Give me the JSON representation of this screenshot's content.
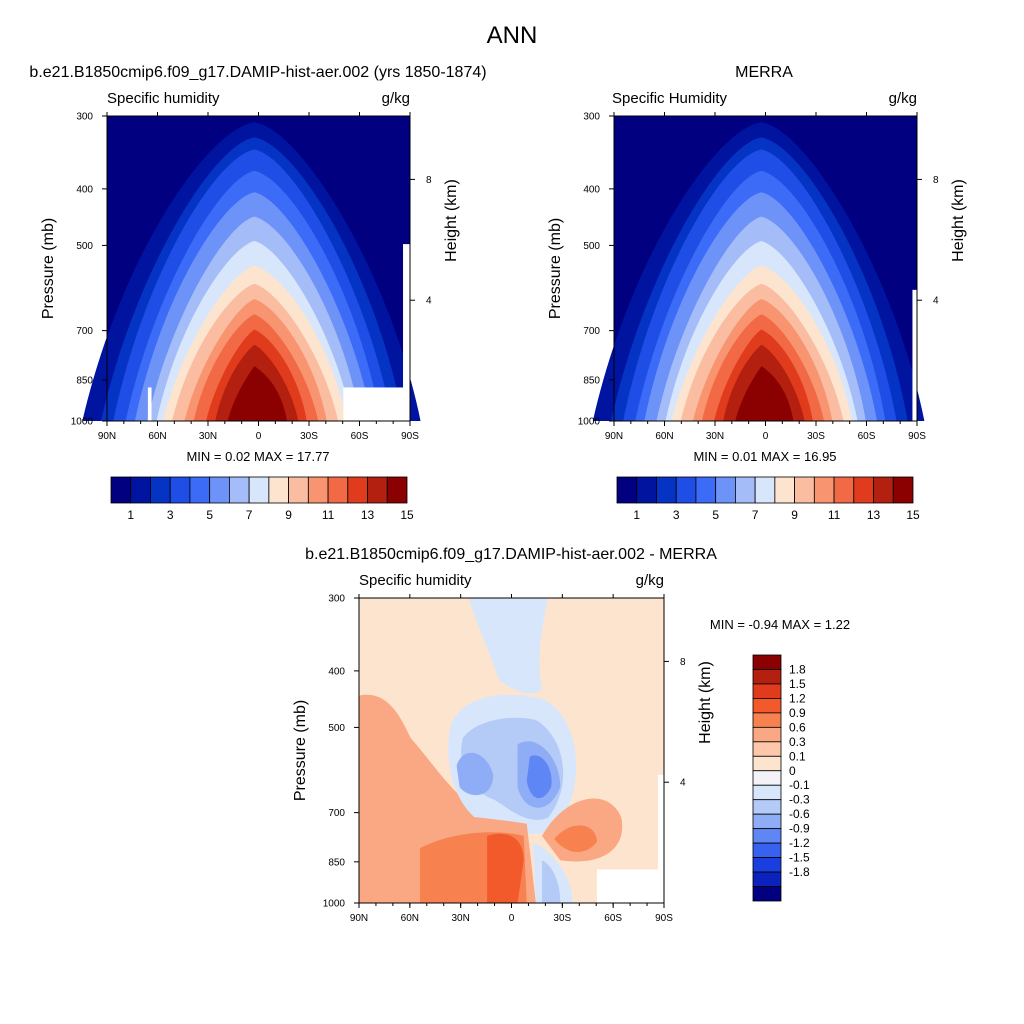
{
  "figure_title": "ANN",
  "chart_data": [
    {
      "type": "heatmap",
      "panel_title": "b.e21.B1850cmip6.f09_g17.DAMIP-hist-aer.002 (yrs 1850-1874)",
      "left_label": "Specific humidity",
      "right_label": "g/kg",
      "ylabel": "Pressure (mb)",
      "y2label": "Height (km)",
      "xticks": [
        "90N",
        "60N",
        "30N",
        "0",
        "30S",
        "60S",
        "90S"
      ],
      "yticks": [
        "300",
        "400",
        "500",
        "700",
        "850",
        "1000"
      ],
      "y2ticks": [
        "8",
        "4"
      ],
      "stats": "MIN =   0.02  MAX =  17.77",
      "min": 0.02,
      "max": 17.77,
      "levels": [
        1,
        2,
        3,
        4,
        5,
        6,
        7,
        8,
        9,
        10,
        11,
        12,
        13,
        14,
        15
      ],
      "colorbar_labels": [
        "1",
        "3",
        "5",
        "7",
        "9",
        "11",
        "13",
        "15"
      ],
      "colorbar_orientation": "horizontal",
      "colors": [
        "#000080",
        "#0014a0",
        "#0533c4",
        "#1e4ee6",
        "#3c6cf7",
        "#6e93f8",
        "#a4bdf8",
        "#d8e6fb",
        "#fde4cf",
        "#fbbda1",
        "#f8946f",
        "#f26945",
        "#e13b1d",
        "#b3200f",
        "#8b0000"
      ]
    },
    {
      "type": "heatmap",
      "panel_title": "MERRA",
      "left_label": "Specific Humidity",
      "right_label": "g/kg",
      "ylabel": "Pressure (mb)",
      "y2label": "Height (km)",
      "xticks": [
        "90N",
        "60N",
        "30N",
        "0",
        "30S",
        "60S",
        "90S"
      ],
      "yticks": [
        "300",
        "400",
        "500",
        "700",
        "850",
        "1000"
      ],
      "y2ticks": [
        "8",
        "4"
      ],
      "stats": "MIN =   0.01  MAX =  16.95",
      "min": 0.01,
      "max": 16.95,
      "levels": [
        1,
        2,
        3,
        4,
        5,
        6,
        7,
        8,
        9,
        10,
        11,
        12,
        13,
        14,
        15
      ],
      "colorbar_labels": [
        "1",
        "3",
        "5",
        "7",
        "9",
        "11",
        "13",
        "15"
      ],
      "colorbar_orientation": "horizontal"
    },
    {
      "type": "heatmap",
      "panel_title": "b.e21.B1850cmip6.f09_g17.DAMIP-hist-aer.002 - MERRA",
      "left_label": "Specific humidity",
      "right_label": "g/kg",
      "ylabel": "Pressure (mb)",
      "y2label": "Height (km)",
      "xticks": [
        "90N",
        "60N",
        "30N",
        "0",
        "30S",
        "60S",
        "90S"
      ],
      "yticks": [
        "300",
        "400",
        "500",
        "700",
        "850",
        "1000"
      ],
      "y2ticks": [
        "8",
        "4"
      ],
      "stats": "MIN =  -0.94  MAX =   1.22",
      "min": -0.94,
      "max": 1.22,
      "levels": [
        -1.8,
        -1.5,
        -1.2,
        -0.9,
        -0.6,
        -0.3,
        -0.1,
        0,
        0.1,
        0.3,
        0.6,
        0.9,
        1.2,
        1.5,
        1.8
      ],
      "colorbar_labels": [
        "1.8",
        "1.5",
        "1.2",
        "0.9",
        "0.6",
        "0.3",
        "0.1",
        "0",
        "-0.1",
        "-0.3",
        "-0.6",
        "-0.9",
        "-1.2",
        "-1.5",
        "-1.8"
      ],
      "colorbar_orientation": "vertical",
      "colors": [
        "#8b0000",
        "#b3200f",
        "#e13b1d",
        "#f25a2c",
        "#f7824f",
        "#faa784",
        "#fcc7aa",
        "#fde4cf",
        "#f2f2f8",
        "#d8e6fb",
        "#b4cbf8",
        "#8fadf7",
        "#5f86f5",
        "#3762f0",
        "#1a3fe0",
        "#0c22bd",
        "#000080"
      ]
    }
  ]
}
